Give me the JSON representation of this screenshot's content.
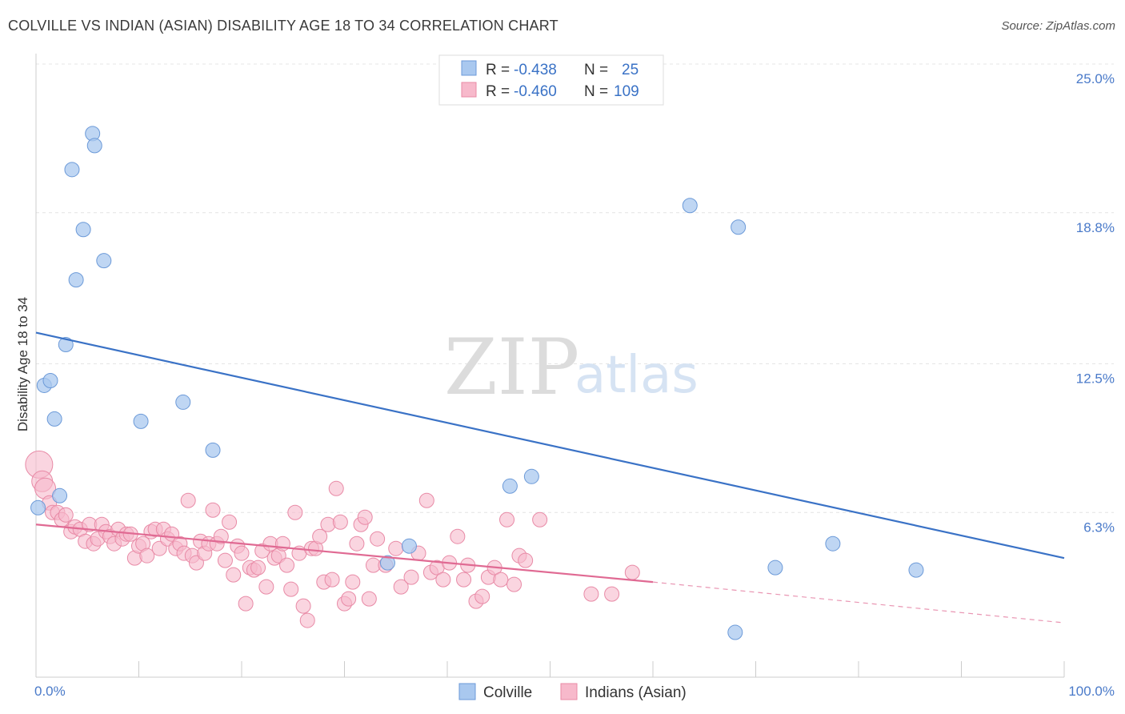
{
  "title": "COLVILLE VS INDIAN (ASIAN) DISABILITY AGE 18 TO 34 CORRELATION CHART",
  "source": "Source: ZipAtlas.com",
  "watermark": {
    "zip": "ZIP",
    "atlas": "atlas"
  },
  "legend_box": [
    {
      "r_label": "R =",
      "r_value": "-0.438",
      "n_label": "N =",
      "n_value": "25",
      "color": "#a9c8ef",
      "stroke": "#6c9ad8"
    },
    {
      "r_label": "R =",
      "r_value": "-0.460",
      "n_label": "N =",
      "n_value": "109",
      "color": "#f7b9cb",
      "stroke": "#e88aa6"
    }
  ],
  "bottom_legend": [
    {
      "label": "Colville",
      "color": "#a9c8ef",
      "stroke": "#6c9ad8"
    },
    {
      "label": "Indians (Asian)",
      "color": "#f7b9cb",
      "stroke": "#e88aa6"
    }
  ],
  "chart_data": {
    "type": "scatter",
    "title": "COLVILLE VS INDIAN (ASIAN) DISABILITY AGE 18 TO 34 CORRELATION CHART",
    "xlabel": "",
    "ylabel": "Disability Age 18 to 34",
    "xlim": [
      0,
      100
    ],
    "ylim": [
      0,
      25
    ],
    "x_tick_labels": [
      "0.0%",
      "100.0%"
    ],
    "y_ticks": [
      6.3,
      12.5,
      18.8,
      25.0
    ],
    "y_tick_labels": [
      "6.3%",
      "12.5%",
      "18.8%",
      "25.0%"
    ],
    "grid": true,
    "series": [
      {
        "name": "Colville",
        "color": "#a9c8ef",
        "stroke": "#6c9ad8",
        "trend": {
          "x": [
            0,
            100
          ],
          "y": [
            13.8,
            4.4
          ],
          "color": "#3a72c6"
        },
        "points": [
          [
            0.2,
            6.5
          ],
          [
            0.8,
            11.6
          ],
          [
            1.4,
            11.8
          ],
          [
            1.8,
            10.2
          ],
          [
            2.3,
            7.0
          ],
          [
            2.9,
            13.3
          ],
          [
            3.5,
            20.6
          ],
          [
            3.9,
            16.0
          ],
          [
            4.6,
            18.1
          ],
          [
            5.5,
            22.1
          ],
          [
            5.7,
            21.6
          ],
          [
            6.6,
            16.8
          ],
          [
            10.2,
            10.1
          ],
          [
            14.3,
            10.9
          ],
          [
            17.2,
            8.9
          ],
          [
            34.2,
            4.2
          ],
          [
            36.3,
            4.9
          ],
          [
            46.1,
            7.4
          ],
          [
            48.2,
            7.8
          ],
          [
            63.6,
            19.1
          ],
          [
            68.3,
            18.2
          ],
          [
            68.0,
            1.3
          ],
          [
            71.9,
            4.0
          ],
          [
            77.5,
            5.0
          ],
          [
            85.6,
            3.9
          ]
        ]
      },
      {
        "name": "Indians (Asian)",
        "color": "#f7b9cb",
        "stroke": "#e88aa6",
        "trend": {
          "x": [
            0,
            60
          ],
          "y": [
            5.8,
            3.4
          ],
          "color": "#e06a93"
        },
        "trend_dashed": {
          "x": [
            60,
            100
          ],
          "y": [
            3.4,
            1.7
          ]
        },
        "points": [
          [
            0.3,
            8.3
          ],
          [
            0.6,
            7.6
          ],
          [
            0.9,
            7.3
          ],
          [
            1.3,
            6.7
          ],
          [
            1.6,
            6.3
          ],
          [
            2.1,
            6.3
          ],
          [
            2.5,
            6.0
          ],
          [
            2.9,
            6.2
          ],
          [
            3.4,
            5.5
          ],
          [
            3.8,
            5.7
          ],
          [
            4.3,
            5.6
          ],
          [
            4.8,
            5.1
          ],
          [
            5.2,
            5.8
          ],
          [
            5.6,
            5.0
          ],
          [
            6.0,
            5.2
          ],
          [
            6.4,
            5.8
          ],
          [
            6.8,
            5.5
          ],
          [
            7.2,
            5.3
          ],
          [
            7.6,
            5.0
          ],
          [
            8.0,
            5.6
          ],
          [
            8.4,
            5.2
          ],
          [
            8.8,
            5.4
          ],
          [
            9.2,
            5.4
          ],
          [
            9.6,
            4.4
          ],
          [
            10.0,
            4.9
          ],
          [
            10.4,
            5.0
          ],
          [
            10.8,
            4.5
          ],
          [
            11.2,
            5.5
          ],
          [
            11.6,
            5.6
          ],
          [
            12.0,
            4.8
          ],
          [
            12.4,
            5.6
          ],
          [
            12.8,
            5.2
          ],
          [
            13.2,
            5.4
          ],
          [
            13.6,
            4.8
          ],
          [
            14.0,
            5.0
          ],
          [
            14.4,
            4.6
          ],
          [
            14.8,
            6.8
          ],
          [
            15.2,
            4.5
          ],
          [
            15.6,
            4.2
          ],
          [
            16.0,
            5.1
          ],
          [
            16.4,
            4.6
          ],
          [
            16.8,
            5.0
          ],
          [
            17.2,
            6.4
          ],
          [
            17.6,
            5.0
          ],
          [
            18.0,
            5.3
          ],
          [
            18.4,
            4.3
          ],
          [
            18.8,
            5.9
          ],
          [
            19.2,
            3.7
          ],
          [
            19.6,
            4.9
          ],
          [
            20.0,
            4.6
          ],
          [
            20.4,
            2.5
          ],
          [
            20.8,
            4.0
          ],
          [
            21.2,
            3.9
          ],
          [
            21.6,
            4.0
          ],
          [
            22.0,
            4.7
          ],
          [
            22.4,
            3.2
          ],
          [
            22.8,
            5.0
          ],
          [
            23.2,
            4.4
          ],
          [
            23.6,
            4.5
          ],
          [
            24.0,
            5.0
          ],
          [
            24.4,
            4.1
          ],
          [
            24.8,
            3.1
          ],
          [
            25.2,
            6.3
          ],
          [
            25.6,
            4.6
          ],
          [
            26.0,
            2.4
          ],
          [
            26.4,
            1.8
          ],
          [
            26.8,
            4.8
          ],
          [
            27.2,
            4.8
          ],
          [
            27.6,
            5.3
          ],
          [
            28.0,
            3.4
          ],
          [
            28.4,
            5.8
          ],
          [
            28.8,
            3.5
          ],
          [
            29.2,
            7.3
          ],
          [
            29.6,
            5.9
          ],
          [
            30.0,
            2.5
          ],
          [
            30.4,
            2.7
          ],
          [
            30.8,
            3.4
          ],
          [
            31.2,
            5.0
          ],
          [
            31.6,
            5.8
          ],
          [
            32.0,
            6.1
          ],
          [
            32.4,
            2.7
          ],
          [
            32.8,
            4.1
          ],
          [
            33.2,
            5.2
          ],
          [
            34.0,
            4.1
          ],
          [
            35.0,
            4.8
          ],
          [
            35.5,
            3.2
          ],
          [
            36.5,
            3.6
          ],
          [
            37.2,
            4.6
          ],
          [
            38.0,
            6.8
          ],
          [
            38.4,
            3.8
          ],
          [
            39.0,
            4.0
          ],
          [
            39.6,
            3.5
          ],
          [
            40.2,
            4.2
          ],
          [
            41.0,
            5.3
          ],
          [
            41.6,
            3.5
          ],
          [
            42.0,
            4.1
          ],
          [
            42.8,
            2.6
          ],
          [
            43.4,
            2.8
          ],
          [
            44.0,
            3.6
          ],
          [
            44.6,
            4.0
          ],
          [
            45.2,
            3.5
          ],
          [
            45.8,
            6.0
          ],
          [
            46.5,
            3.3
          ],
          [
            47.0,
            4.5
          ],
          [
            47.6,
            4.3
          ],
          [
            49.0,
            6.0
          ],
          [
            54.0,
            2.9
          ],
          [
            56.0,
            2.9
          ],
          [
            58.0,
            3.8
          ]
        ]
      }
    ]
  }
}
